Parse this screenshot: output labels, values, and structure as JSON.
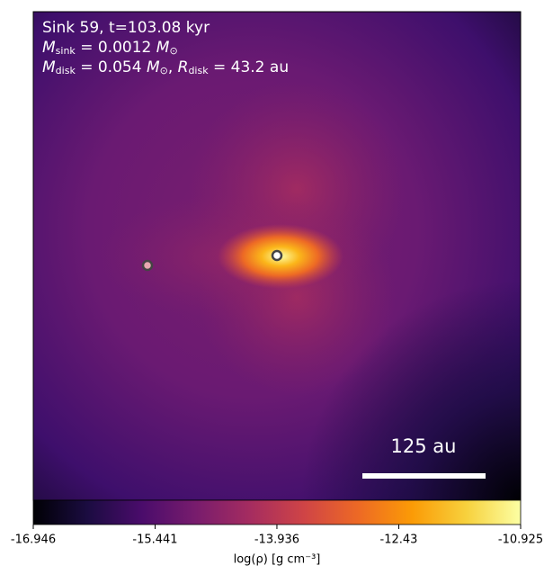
{
  "chart_data": {
    "type": "density-map",
    "title": "Sink 59, t=103.08 kyr",
    "sink_mass": {
      "symbol": "M",
      "subscript": "sink",
      "value": " = 0.0012 ",
      "unit": "M",
      "unit_subscript": "⊙"
    },
    "disk": {
      "mass_symbol": "M",
      "mass_subscript": "disk",
      "mass_value": " = 0.054 ",
      "mass_unit": "M",
      "mass_unit_subscript": "⊙",
      "separator": ", ",
      "radius_symbol": "R",
      "radius_subscript": "disk",
      "radius_value": " = 43.2 au"
    },
    "scale_bar_label": "125 au",
    "colorbar_label": "log(ρ) [g cm⁻³]",
    "clim": [
      -16.946,
      -10.925
    ],
    "colorbar_ticks": [
      -16.946,
      -15.441,
      -13.936,
      -12.43,
      -10.925
    ],
    "colormap": [
      "#000004",
      "#1b0c41",
      "#4a0c6b",
      "#781c6d",
      "#a52c60",
      "#cf4446",
      "#ed6925",
      "#fb9b06",
      "#f7d13d",
      "#fcffa4"
    ]
  }
}
